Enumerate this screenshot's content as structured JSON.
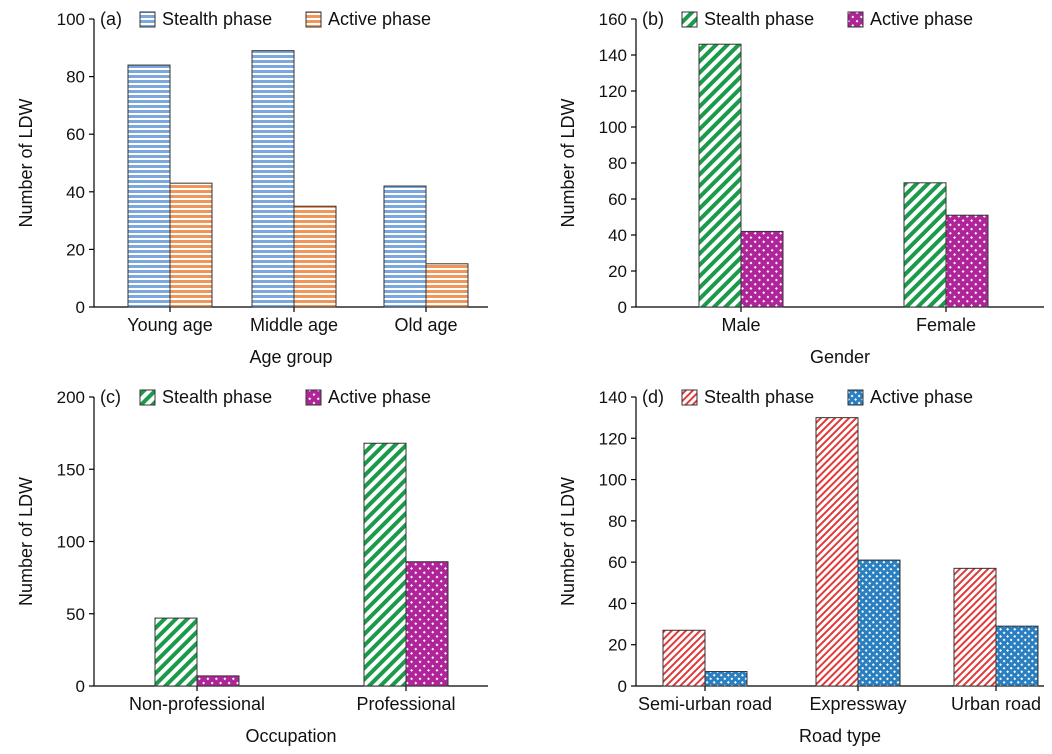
{
  "chart_data": [
    {
      "type": "bar",
      "panel_label": "(a)",
      "categories": [
        "Young age",
        "Middle age",
        "Old age"
      ],
      "series": [
        {
          "name": "Stealth phase",
          "values": [
            84,
            89,
            42
          ],
          "color": "#7ba7dc",
          "pattern": "horizontal-lines"
        },
        {
          "name": "Active phase",
          "values": [
            43,
            35,
            15
          ],
          "color": "#f0965a",
          "pattern": "horizontal-lines"
        }
      ],
      "xlabel": "Age group",
      "ylabel": "Number of LDW",
      "ylim": [
        0,
        100
      ],
      "yticks": [
        0,
        20,
        40,
        60,
        80,
        100
      ],
      "legend": "top",
      "grid": false
    },
    {
      "type": "bar",
      "panel_label": "(b)",
      "categories": [
        "Male",
        "Female"
      ],
      "series": [
        {
          "name": "Stealth phase",
          "values": [
            146,
            69
          ],
          "color": "#1a9a4a",
          "pattern": "diagonal-stripes"
        },
        {
          "name": "Active phase",
          "values": [
            42,
            51
          ],
          "color": "#b0249a",
          "pattern": "crosshatch"
        }
      ],
      "xlabel": "Gender",
      "ylabel": "Number of LDW",
      "ylim": [
        0,
        160
      ],
      "yticks": [
        0,
        20,
        40,
        60,
        80,
        100,
        120,
        140,
        160
      ],
      "legend": "top",
      "grid": false
    },
    {
      "type": "bar",
      "panel_label": "(c)",
      "categories": [
        "Non-professional",
        "Professional"
      ],
      "series": [
        {
          "name": "Stealth phase",
          "values": [
            47,
            168
          ],
          "color": "#1a9a4a",
          "pattern": "diagonal-stripes"
        },
        {
          "name": "Active phase",
          "values": [
            7,
            86
          ],
          "color": "#b0249a",
          "pattern": "crosshatch"
        }
      ],
      "xlabel": "Occupation",
      "ylabel": "Number of LDW",
      "ylim": [
        0,
        200
      ],
      "yticks": [
        0,
        50,
        100,
        150,
        200
      ],
      "legend": "top",
      "grid": false
    },
    {
      "type": "bar",
      "panel_label": "(d)",
      "categories": [
        "Semi-urban road",
        "Expressway",
        "Urban road"
      ],
      "series": [
        {
          "name": "Stealth phase",
          "values": [
            27,
            130,
            57
          ],
          "color": "#e03a3a",
          "pattern": "diagonal-stripes-thin"
        },
        {
          "name": "Active phase",
          "values": [
            7,
            61,
            29
          ],
          "color": "#2a7fc0",
          "pattern": "crosshatch"
        }
      ],
      "xlabel": "Road type",
      "ylabel": "Number of LDW",
      "ylim": [
        0,
        140
      ],
      "yticks": [
        0,
        20,
        40,
        60,
        80,
        100,
        120,
        140
      ],
      "legend": "top",
      "grid": false
    }
  ]
}
